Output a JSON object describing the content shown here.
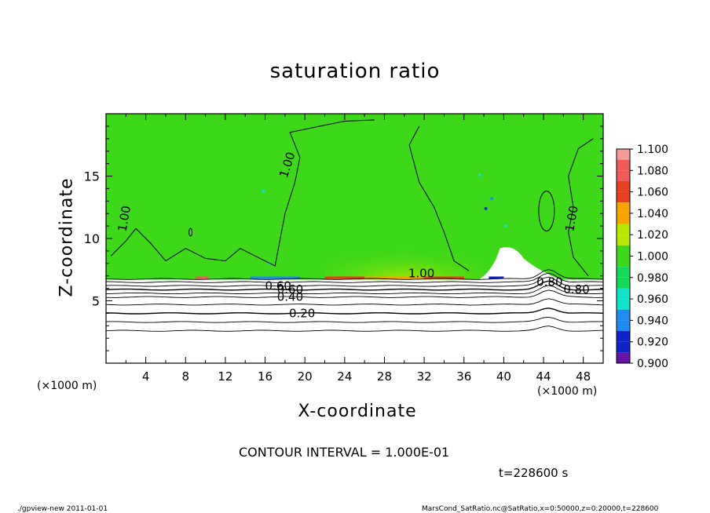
{
  "chart_data": {
    "type": "heatmap",
    "title": "saturation ratio",
    "xlabel": "X-coordinate",
    "ylabel": "Z-coordinate",
    "x_unit": "(×1000 m)",
    "x_range": [
      0,
      50
    ],
    "y_range": [
      0,
      20
    ],
    "x_ticks": [
      4,
      8,
      12,
      16,
      20,
      24,
      28,
      32,
      36,
      40,
      44,
      48
    ],
    "y_ticks": [
      5,
      10,
      15
    ],
    "colorbar": {
      "min": 0.9,
      "max": 1.1,
      "levels": [
        {
          "value": "1.100",
          "color": "#f59a9a"
        },
        {
          "value": "1.080",
          "color": "#ef5a5a"
        },
        {
          "value": "1.060",
          "color": "#e8401e"
        },
        {
          "value": "1.040",
          "color": "#f5a500"
        },
        {
          "value": "1.020",
          "color": "#b6e800"
        },
        {
          "value": "1.000",
          "color": "#3ed81a"
        },
        {
          "value": "0.980",
          "color": "#16d95a"
        },
        {
          "value": "0.960",
          "color": "#12e2c8"
        },
        {
          "value": "0.940",
          "color": "#1e8cf0"
        },
        {
          "value": "0.920",
          "color": "#1023c8"
        },
        {
          "value": "0.900",
          "color": "#6614a8"
        }
      ]
    },
    "field_description": "saturation ~1.00 above z≈6.8 km, below ~0.9 (white, contoured)",
    "horizontal_contours": [
      {
        "label": "0.20",
        "z": 4.0,
        "label_x": 18.4
      },
      {
        "label": "0.40",
        "z": 5.3,
        "label_x": 17.2
      },
      {
        "label": "0.60",
        "z": 5.9,
        "label_x": 17.2
      },
      {
        "label": "0.60",
        "z": 6.2,
        "label_x": 16.0
      },
      {
        "label": "0.80",
        "z": 5.9,
        "label_x": 46.0
      }
    ],
    "contour_labels": [
      {
        "label": "1.00",
        "x": 2.0,
        "z": 10.5
      },
      {
        "label": "1.00",
        "x": 18.2,
        "z": 14.8
      },
      {
        "label": "1.00",
        "x": 30.4,
        "z": 6.9
      },
      {
        "label": "1.00",
        "x": 47.0,
        "z": 10.5
      },
      {
        "label": "0.80",
        "x": 43.3,
        "z": 6.2
      }
    ],
    "contour_interval": "CONTOUR INTERVAL = 1.000E-01",
    "time": "t=228600 s"
  },
  "footer": {
    "left": "./gpview-new   2011-01-01",
    "right": "MarsCond_SatRatio.nc@SatRatio,x=0:50000,z=0:20000,t=228600"
  }
}
